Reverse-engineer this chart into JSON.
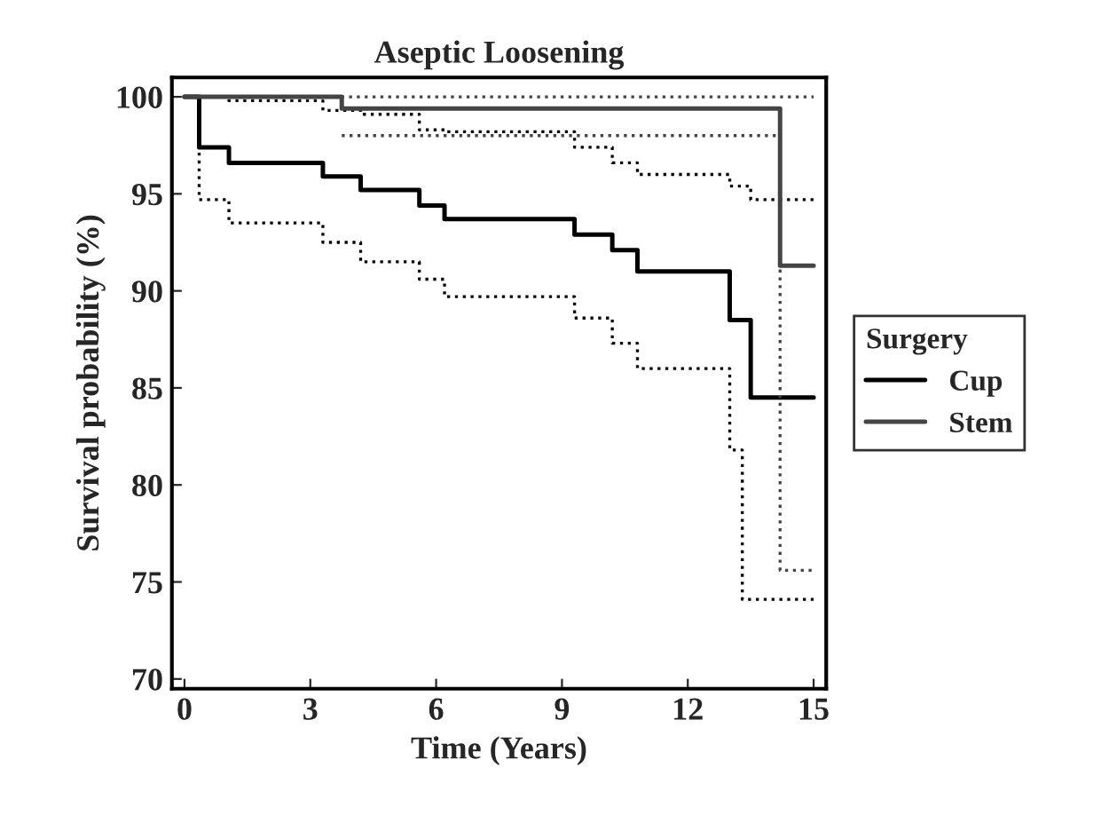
{
  "chart_data": {
    "type": "step",
    "title": "Aseptic Loosening",
    "xlabel": "Time (Years)",
    "ylabel": "Survival probability (%)",
    "legend_title": "Surgery",
    "legend": "right",
    "grid": false,
    "xlim": [
      -0.3,
      15.3
    ],
    "xticks": [
      0,
      3,
      6,
      9,
      12,
      15
    ],
    "ylim": [
      69.5,
      101
    ],
    "yticks": [
      70,
      75,
      80,
      85,
      90,
      95,
      100
    ],
    "series": [
      {
        "name": "Cup",
        "color": "#000000",
        "line_style": "solid",
        "x": [
          0,
          0.35,
          1.06,
          3.3,
          4.2,
          5.6,
          6.2,
          9.3,
          10.2,
          10.8,
          13.0,
          13.5,
          15
        ],
        "values": [
          100,
          97.4,
          96.6,
          95.9,
          95.2,
          94.4,
          93.7,
          92.9,
          92.1,
          91.0,
          88.5,
          84.5,
          84.5
        ]
      },
      {
        "color": "#000000",
        "line_style": "dotted",
        "x": [
          0,
          1.06,
          3.3,
          4.2,
          5.6,
          6.2,
          9.3,
          10.2,
          10.8,
          13.0,
          13.5,
          15
        ],
        "values": [
          100,
          99.8,
          99.3,
          99.1,
          98.3,
          98.2,
          97.4,
          96.6,
          96.0,
          95.4,
          94.7,
          94.7
        ]
      },
      {
        "color": "#000000",
        "line_style": "dotted",
        "x": [
          0,
          0.35,
          1.06,
          3.3,
          4.2,
          5.6,
          6.2,
          9.3,
          10.2,
          10.8,
          13.0,
          13.3,
          15
        ],
        "values": [
          100,
          94.7,
          93.5,
          92.5,
          91.5,
          90.6,
          89.7,
          88.6,
          87.3,
          86.0,
          81.8,
          74.1,
          74.1
        ]
      },
      {
        "name": "Stem",
        "color": "#444444",
        "line_style": "solid",
        "x": [
          0,
          3.75,
          14.2,
          15
        ],
        "values": [
          100,
          99.4,
          91.3,
          91.3
        ]
      },
      {
        "color": "#444444",
        "line_style": "dotted",
        "x": [
          0,
          15
        ],
        "values": [
          100,
          100
        ]
      },
      {
        "color": "#444444",
        "line_style": "dotted",
        "x": [
          3.75,
          14.2,
          15
        ],
        "values": [
          98.0,
          75.6,
          75.6
        ]
      }
    ]
  }
}
